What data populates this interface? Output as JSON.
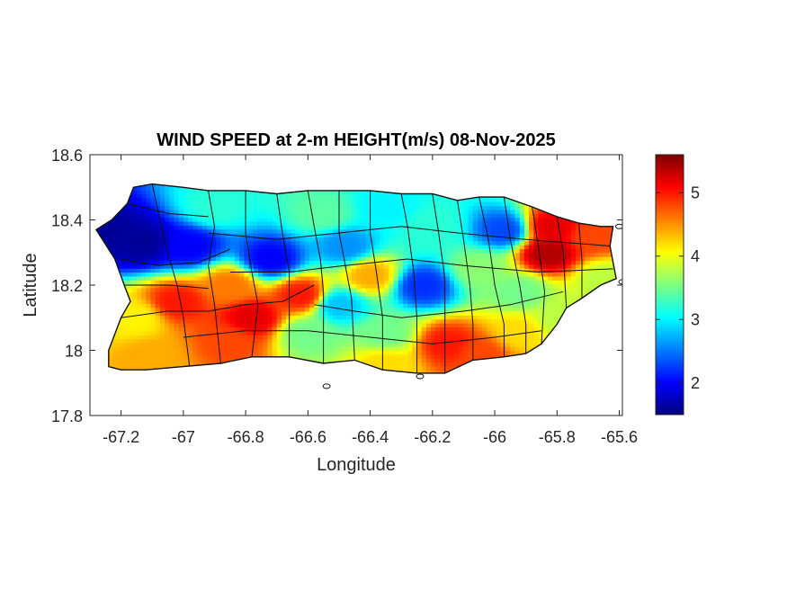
{
  "chart_data": {
    "type": "heatmap",
    "title": "WIND SPEED at 2-m HEIGHT(m/s) 08-Nov-2025",
    "xlabel": "Longitude",
    "ylabel": "Latitude",
    "xlim": [
      -67.3,
      -65.59
    ],
    "ylim": [
      17.8,
      18.6
    ],
    "x_ticks": [
      -67.2,
      -67.0,
      -66.8,
      -66.6,
      -66.4,
      -66.2,
      -66.0,
      -65.8,
      -65.6
    ],
    "x_tick_labels": [
      "-67.2",
      "-67",
      "-66.8",
      "-66.6",
      "-66.4",
      "-66.2",
      "-66",
      "-65.8",
      "-65.6"
    ],
    "y_ticks": [
      17.8,
      18.0,
      18.2,
      18.4,
      18.6
    ],
    "y_tick_labels": [
      "17.8",
      "18",
      "18.2",
      "18.4",
      "18.6"
    ],
    "colormap": "jet",
    "colorbar": {
      "range": [
        1.5,
        5.6
      ],
      "ticks": [
        2,
        3,
        4,
        5
      ],
      "tick_labels": [
        "2",
        "3",
        "4",
        "5"
      ],
      "colors": [
        "#00007f",
        "#0000ff",
        "#007fff",
        "#00ffff",
        "#7fff7f",
        "#ffff00",
        "#ff7f00",
        "#ff0000",
        "#7f0000"
      ]
    },
    "island_outline": [
      [
        -67.24,
        18.0
      ],
      [
        -67.24,
        17.95
      ],
      [
        -67.2,
        17.94
      ],
      [
        -67.12,
        17.94
      ],
      [
        -67.0,
        17.95
      ],
      [
        -66.88,
        17.96
      ],
      [
        -66.78,
        17.98
      ],
      [
        -66.66,
        17.98
      ],
      [
        -66.55,
        17.96
      ],
      [
        -66.45,
        17.97
      ],
      [
        -66.36,
        17.94
      ],
      [
        -66.25,
        17.93
      ],
      [
        -66.16,
        17.93
      ],
      [
        -66.07,
        17.97
      ],
      [
        -65.97,
        17.98
      ],
      [
        -65.9,
        17.99
      ],
      [
        -65.85,
        18.02
      ],
      [
        -65.8,
        18.08
      ],
      [
        -65.77,
        18.13
      ],
      [
        -65.72,
        18.16
      ],
      [
        -65.66,
        18.2
      ],
      [
        -65.61,
        18.22
      ],
      [
        -65.62,
        18.27
      ],
      [
        -65.63,
        18.32
      ],
      [
        -65.62,
        18.38
      ],
      [
        -65.66,
        18.38
      ],
      [
        -65.73,
        18.39
      ],
      [
        -65.8,
        18.41
      ],
      [
        -65.88,
        18.44
      ],
      [
        -65.97,
        18.47
      ],
      [
        -66.05,
        18.47
      ],
      [
        -66.12,
        18.46
      ],
      [
        -66.2,
        18.48
      ],
      [
        -66.3,
        18.48
      ],
      [
        -66.4,
        18.49
      ],
      [
        -66.5,
        18.49
      ],
      [
        -66.6,
        18.49
      ],
      [
        -66.7,
        18.48
      ],
      [
        -66.8,
        18.49
      ],
      [
        -66.92,
        18.49
      ],
      [
        -67.0,
        18.5
      ],
      [
        -67.1,
        18.51
      ],
      [
        -67.16,
        18.5
      ],
      [
        -67.18,
        18.45
      ],
      [
        -67.23,
        18.4
      ],
      [
        -67.28,
        18.37
      ],
      [
        -67.22,
        18.28
      ],
      [
        -67.19,
        18.2
      ],
      [
        -67.17,
        18.15
      ],
      [
        -67.2,
        18.1
      ],
      [
        -67.22,
        18.05
      ]
    ],
    "wind_speed_centers": [
      {
        "lon": -67.13,
        "lat": 18.33,
        "value": 1.6
      },
      {
        "lon": -67.25,
        "lat": 18.36,
        "value": 1.6
      },
      {
        "lon": -66.98,
        "lat": 18.32,
        "value": 2.0
      },
      {
        "lon": -66.72,
        "lat": 18.28,
        "value": 2.0
      },
      {
        "lon": -66.48,
        "lat": 18.32,
        "value": 2.6
      },
      {
        "lon": -66.23,
        "lat": 18.2,
        "value": 2.2
      },
      {
        "lon": -66.5,
        "lat": 18.14,
        "value": 2.8
      },
      {
        "lon": -65.97,
        "lat": 18.37,
        "value": 2.3
      },
      {
        "lon": -66.2,
        "lat": 18.38,
        "value": 3.2
      },
      {
        "lon": -66.9,
        "lat": 18.44,
        "value": 3.2
      },
      {
        "lon": -66.85,
        "lat": 18.2,
        "value": 4.6
      },
      {
        "lon": -66.62,
        "lat": 18.17,
        "value": 5.0
      },
      {
        "lon": -66.4,
        "lat": 18.23,
        "value": 4.4
      },
      {
        "lon": -66.78,
        "lat": 18.1,
        "value": 5.2
      },
      {
        "lon": -67.02,
        "lat": 18.15,
        "value": 5.0
      },
      {
        "lon": -67.15,
        "lat": 18.1,
        "value": 4.1
      },
      {
        "lon": -67.1,
        "lat": 17.98,
        "value": 4.4
      },
      {
        "lon": -66.85,
        "lat": 18.03,
        "value": 4.8
      },
      {
        "lon": -66.6,
        "lat": 18.05,
        "value": 3.5
      },
      {
        "lon": -66.35,
        "lat": 18.05,
        "value": 3.5
      },
      {
        "lon": -66.15,
        "lat": 18.02,
        "value": 5.0
      },
      {
        "lon": -66.05,
        "lat": 17.99,
        "value": 4.8
      },
      {
        "lon": -66.35,
        "lat": 17.96,
        "value": 4.2
      },
      {
        "lon": -65.92,
        "lat": 18.06,
        "value": 4.2
      },
      {
        "lon": -65.8,
        "lat": 18.1,
        "value": 3.8
      },
      {
        "lon": -65.83,
        "lat": 18.3,
        "value": 5.4
      },
      {
        "lon": -65.82,
        "lat": 18.38,
        "value": 5.2
      },
      {
        "lon": -65.68,
        "lat": 18.35,
        "value": 4.8
      },
      {
        "lon": -65.65,
        "lat": 18.22,
        "value": 3.8
      },
      {
        "lon": -65.92,
        "lat": 18.18,
        "value": 3.5
      },
      {
        "lon": -66.05,
        "lat": 18.25,
        "value": 3.6
      },
      {
        "lon": -66.55,
        "lat": 18.42,
        "value": 3.4
      },
      {
        "lon": -66.35,
        "lat": 18.44,
        "value": 3.0
      }
    ],
    "municipality_borders": [
      [
        [
          -67.18,
          18.45
        ],
        [
          -67.05,
          18.42
        ],
        [
          -66.92,
          18.41
        ]
      ],
      [
        [
          -67.2,
          18.28
        ],
        [
          -67.08,
          18.26
        ],
        [
          -66.95,
          18.27
        ],
        [
          -66.85,
          18.31
        ]
      ],
      [
        [
          -67.19,
          18.2
        ],
        [
          -67.05,
          18.2
        ],
        [
          -66.92,
          18.19
        ]
      ],
      [
        [
          -67.2,
          18.1
        ],
        [
          -67.05,
          18.12
        ],
        [
          -66.92,
          18.12
        ],
        [
          -66.8,
          18.14
        ],
        [
          -66.68,
          18.15
        ],
        [
          -66.58,
          18.2
        ]
      ],
      [
        [
          -67.1,
          18.51
        ],
        [
          -67.08,
          18.42
        ],
        [
          -67.05,
          18.3
        ],
        [
          -67.02,
          18.2
        ],
        [
          -67.0,
          18.1
        ],
        [
          -66.98,
          17.95
        ]
      ],
      [
        [
          -66.92,
          18.49
        ],
        [
          -66.9,
          18.38
        ],
        [
          -66.92,
          18.26
        ],
        [
          -66.9,
          18.14
        ],
        [
          -66.88,
          17.96
        ]
      ],
      [
        [
          -66.8,
          18.49
        ],
        [
          -66.8,
          18.36
        ],
        [
          -66.78,
          18.24
        ],
        [
          -66.76,
          18.14
        ],
        [
          -66.78,
          17.98
        ]
      ],
      [
        [
          -66.7,
          18.48
        ],
        [
          -66.68,
          18.35
        ],
        [
          -66.66,
          18.24
        ],
        [
          -66.66,
          18.12
        ],
        [
          -66.66,
          17.98
        ]
      ],
      [
        [
          -66.6,
          18.49
        ],
        [
          -66.58,
          18.38
        ],
        [
          -66.56,
          18.28
        ],
        [
          -66.55,
          18.18
        ],
        [
          -66.55,
          18.06
        ],
        [
          -66.55,
          17.96
        ]
      ],
      [
        [
          -66.5,
          18.49
        ],
        [
          -66.5,
          18.36
        ],
        [
          -66.48,
          18.26
        ],
        [
          -66.46,
          18.16
        ],
        [
          -66.45,
          17.97
        ]
      ],
      [
        [
          -66.4,
          18.49
        ],
        [
          -66.4,
          18.36
        ],
        [
          -66.38,
          18.24
        ],
        [
          -66.36,
          18.1
        ],
        [
          -66.36,
          17.94
        ]
      ],
      [
        [
          -66.3,
          18.48
        ],
        [
          -66.28,
          18.38
        ],
        [
          -66.26,
          18.24
        ],
        [
          -66.25,
          18.1
        ],
        [
          -66.25,
          17.93
        ]
      ],
      [
        [
          -66.2,
          18.48
        ],
        [
          -66.18,
          18.36
        ],
        [
          -66.16,
          18.22
        ],
        [
          -66.16,
          18.08
        ],
        [
          -66.16,
          17.93
        ]
      ],
      [
        [
          -66.12,
          18.46
        ],
        [
          -66.1,
          18.34
        ],
        [
          -66.08,
          18.2
        ],
        [
          -66.07,
          18.08
        ],
        [
          -66.07,
          17.97
        ]
      ],
      [
        [
          -66.05,
          18.47
        ],
        [
          -66.02,
          18.34
        ],
        [
          -66.0,
          18.2
        ],
        [
          -65.97,
          18.08
        ],
        [
          -65.97,
          17.98
        ]
      ],
      [
        [
          -65.97,
          18.47
        ],
        [
          -65.95,
          18.34
        ],
        [
          -65.92,
          18.2
        ],
        [
          -65.9,
          18.08
        ],
        [
          -65.9,
          17.99
        ]
      ],
      [
        [
          -65.88,
          18.44
        ],
        [
          -65.86,
          18.32
        ],
        [
          -65.84,
          18.18
        ],
        [
          -65.85,
          18.02
        ]
      ],
      [
        [
          -65.8,
          18.41
        ],
        [
          -65.78,
          18.3
        ],
        [
          -65.77,
          18.13
        ]
      ],
      [
        [
          -65.73,
          18.39
        ],
        [
          -65.72,
          18.28
        ],
        [
          -65.72,
          18.16
        ]
      ],
      [
        [
          -66.92,
          18.36
        ],
        [
          -66.7,
          18.34
        ],
        [
          -66.5,
          18.36
        ],
        [
          -66.3,
          18.38
        ],
        [
          -66.12,
          18.36
        ],
        [
          -65.9,
          18.34
        ],
        [
          -65.63,
          18.32
        ]
      ],
      [
        [
          -66.85,
          18.24
        ],
        [
          -66.66,
          18.24
        ],
        [
          -66.48,
          18.26
        ],
        [
          -66.28,
          18.28
        ],
        [
          -66.1,
          18.26
        ],
        [
          -65.86,
          18.24
        ],
        [
          -65.62,
          18.25
        ]
      ],
      [
        [
          -66.58,
          18.14
        ],
        [
          -66.45,
          18.12
        ],
        [
          -66.3,
          18.1
        ],
        [
          -66.1,
          18.12
        ],
        [
          -65.95,
          18.14
        ],
        [
          -65.78,
          18.18
        ]
      ],
      [
        [
          -67.0,
          18.04
        ],
        [
          -66.8,
          18.06
        ],
        [
          -66.6,
          18.06
        ],
        [
          -66.4,
          18.04
        ],
        [
          -66.2,
          18.02
        ],
        [
          -66.0,
          18.04
        ],
        [
          -65.85,
          18.06
        ]
      ]
    ],
    "small_islands": [
      {
        "lon": -66.54,
        "lat": 17.89
      },
      {
        "lon": -66.24,
        "lat": 17.92
      },
      {
        "lon": -65.6,
        "lat": 18.38
      },
      {
        "lon": -65.59,
        "lat": 18.21
      }
    ]
  }
}
